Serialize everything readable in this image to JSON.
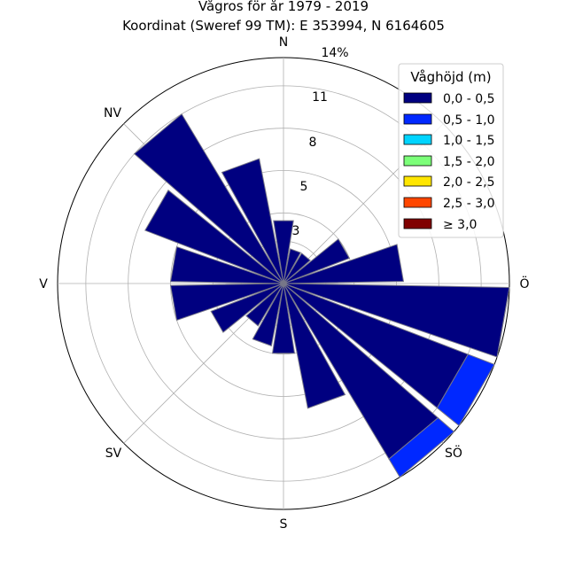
{
  "chart_data": {
    "type": "windrose",
    "title": "Vågros för år 1979 - 2019",
    "subtitle": "Koordinat (Sweref 99 TM): E 353994, N 6164605",
    "direction_labels": [
      "N",
      "NV",
      "V",
      "SV",
      "S",
      "SÖ",
      "Ö"
    ],
    "radial_tick_labels": [
      "3",
      "5",
      "8",
      "11",
      "14%"
    ],
    "radial_max": 16,
    "legend": {
      "title": "Våghöjd (m)",
      "position": "upper-right",
      "bins": [
        {
          "label": "0,0 - 0,5",
          "color": "#000080"
        },
        {
          "label": "0,5 - 1,0",
          "color": "#0028ff"
        },
        {
          "label": "1,0 - 1,5",
          "color": "#00d4ff"
        },
        {
          "label": "1,5 - 2,0",
          "color": "#7cff79"
        },
        {
          "label": "2,0 - 2,5",
          "color": "#ffe600"
        },
        {
          "label": "2,5 - 3,0",
          "color": "#ff4600"
        },
        {
          "label": "≥ 3,0",
          "color": "#800000"
        }
      ]
    },
    "sector_width_deg": 18,
    "sectors": [
      {
        "direction_deg": 0,
        "stack": [
          4.5,
          0,
          0,
          0,
          0,
          0,
          0
        ]
      },
      {
        "direction_deg": 20,
        "stack": [
          2.5,
          0,
          0,
          0,
          0,
          0,
          0
        ]
      },
      {
        "direction_deg": 40,
        "stack": [
          2.5,
          0,
          0,
          0,
          0,
          0,
          0
        ]
      },
      {
        "direction_deg": 60,
        "stack": [
          5.0,
          0,
          0,
          0,
          0,
          0,
          0
        ]
      },
      {
        "direction_deg": 80,
        "stack": [
          8.5,
          0,
          0,
          0,
          0,
          0,
          0
        ]
      },
      {
        "direction_deg": 100,
        "stack": [
          16.0,
          0.2,
          0,
          0,
          0,
          0,
          0
        ]
      },
      {
        "direction_deg": 120,
        "stack": [
          14.0,
          2.5,
          0,
          0,
          0,
          0,
          0
        ]
      },
      {
        "direction_deg": 140,
        "stack": [
          14.5,
          2.5,
          0,
          0,
          0,
          0,
          0
        ]
      },
      {
        "direction_deg": 160,
        "stack": [
          9.0,
          0,
          0,
          0,
          0,
          0,
          0
        ]
      },
      {
        "direction_deg": 180,
        "stack": [
          5.0,
          0,
          0,
          0,
          0,
          0,
          0
        ]
      },
      {
        "direction_deg": 200,
        "stack": [
          4.5,
          0,
          0,
          0,
          0,
          0,
          0
        ]
      },
      {
        "direction_deg": 220,
        "stack": [
          3.5,
          0,
          0,
          0,
          0,
          0,
          0
        ]
      },
      {
        "direction_deg": 240,
        "stack": [
          5.5,
          0,
          0,
          0,
          0,
          0,
          0
        ]
      },
      {
        "direction_deg": 260,
        "stack": [
          8.0,
          0,
          0,
          0,
          0,
          0,
          0
        ]
      },
      {
        "direction_deg": 280,
        "stack": [
          8.0,
          0,
          0,
          0,
          0,
          0,
          0
        ]
      },
      {
        "direction_deg": 300,
        "stack": [
          10.5,
          0,
          0,
          0,
          0,
          0,
          0
        ]
      },
      {
        "direction_deg": 320,
        "stack": [
          14.0,
          0,
          0,
          0,
          0,
          0,
          0
        ]
      },
      {
        "direction_deg": 340,
        "stack": [
          9.0,
          0,
          0,
          0,
          0,
          0,
          0
        ]
      }
    ]
  }
}
